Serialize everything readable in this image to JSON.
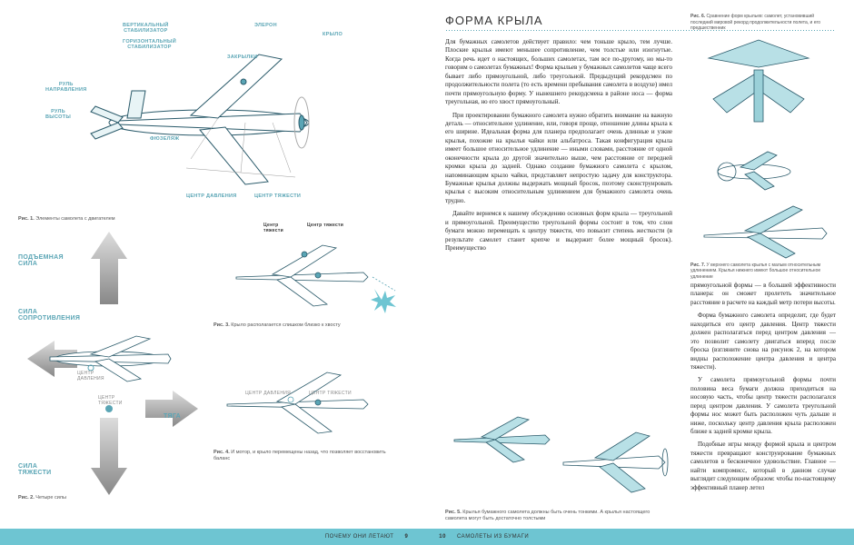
{
  "colors": {
    "teal": "#6ec5d2",
    "tealDark": "#5aa5b5",
    "footerBg": "#6ec5d2"
  },
  "leftPage": {
    "fig1": {
      "labels": {
        "vertStab": "ВЕРТИКАЛЬНЫЙ\nСТАБИЛИЗАТОР",
        "horzStab": "ГОРИЗОНТАЛЬНЫЙ\nСТАБИЛИЗАТОР",
        "aileron": "ЭЛЕРОН",
        "wing": "КРЫЛО",
        "flaps": "ЗАКРЫЛКИ",
        "rudderDir": "РУЛЬ\nНАПРАВЛЕНИЯ",
        "rudderAlt": "РУЛЬ\nВЫСОТЫ",
        "fuselage": "ФЮЗЕЛЯЖ",
        "pressureCenter": "ЦЕНТР ДАВЛЕНИЯ",
        "gravityCenter": "ЦЕНТР ТЯЖЕСТИ"
      },
      "caption": "Рис. 1. Элементы самолета с двигателем"
    },
    "fig2": {
      "forces": {
        "lift": "ПОДЪЕМНАЯ\nСИЛА",
        "drag": "СИЛА\nСОПРОТИВЛЕНИЯ",
        "thrust": "ТЯГА",
        "gravity": "СИЛА\nТЯЖЕСТИ"
      },
      "small": {
        "centerG": "Центр\nтяжести",
        "centerGCaps": "ЦЕНТР\nТЯЖЕСТИ",
        "centerP": "ЦЕНТР\nДАВЛЕНИЯ",
        "centerGravCaps2": "Центр тяжести",
        "centerPress2": "ЦЕНТР ДАВЛЕНИЯ",
        "centerGrav2": "ЦЕНТР ТЯЖЕСТИ"
      },
      "caption2": "Рис. 2. Четыре силы",
      "caption3": "Рис. 3. Крыло располагается слишком близко к хвосту",
      "caption4": "Рис. 4. И мотор, и крыло перемещены назад, что позволяет восстановить баланс"
    }
  },
  "rightPage": {
    "title": "ФОРМА КРЫЛА",
    "para1": "Для бумажных самолетов действует правило: чем тоньше крыло, тем лучше. Плоские крылья имеют меньшее сопротивление, чем толстые или изогнутые. Когда речь идет о настоящих, больших самолетах, там все по-другому, но мы-то говорим о самолетах бумажных! Форма крыльев у бумажных самолетов чаще всего бывает либо прямоугольной, либо треугольной. Предыдущий рекордсмен по продолжительности полета (то есть времени пребывания самолета в воздухе) имел почти прямоугольную форму. У нынешнего рекордсмена в районе носа — форма треугольная, но его хвост прямоугольный.",
    "para2": "При проектировании бумажного самолета нужно обратить внимание на важную деталь — относительное удлинение, или, говоря проще, отношение длины крыла к его ширине. Идеальная форма для планера предполагает очень длинные и узкие крылья, похожие на крылья чайки или альбатроса. Такая конфигурация крыла имеет большое относительное удлинение — иными словами, расстояние от одной оконечности крыла до другой значительно выше, чем расстояние от передней кромки крыла до задней. Однако создание бумажного самолета с крылом, напоминающим крыло чайки, представляет непростую задачу для конструктора. Бумажные крылья должны выдержать мощный бросок, поэтому сконструировать крылья с высоким относительным удлинением для бумажного самолета очень трудно.",
    "para3": "Давайте вернемся к нашему обсуждению основных форм крыла — треугольной и прямоугольной. Преимущество треугольной формы состоит в том, что слои бумаги можно перемещать к центру тяжести, что повысит степень жесткости (в результате самолет станет крепче и выдержит более мощный бросок). Преимущество",
    "paraR1": "прямоугольной формы — в большей эффективности планера: он сможет пролететь значительное расстояние в расчете на каждый метр потери высоты.",
    "paraR2": "Форма бумажного самолета определит, где будет находиться его центр давления. Центр тяжести должен располагаться перед центром давления — это позволит самолету двигаться вперед после броска (взгляните снова на рисунок 2, на котором видны расположение центра давления и центра тяжести).",
    "paraR3": "У самолета прямоугольной формы почти половина веса бумаги должна приходиться на носовую часть, чтобы центр тяжести располагался перед центром давления. У самолета треугольной формы нос может быть расположен чуть дальше и ниже, поскольку центр давления крыла расположен ближе к задней кромке крыла.",
    "paraR4": "Подобные игры между формой крыла и центром тяжести превращают конструирование бумажных самолетов в бесконечное удовольствие. Главное — найти компромисс, который в данном случае выглядит следующим образом: чтобы по-настоящему эффективный планер летел",
    "fig5caption": "Рис. 5. Крылья бумажного самолета должны быть очень тонкими. А крылья настоящего самолета могут быть достаточно толстыми",
    "fig6caption": "Рис. 6. Сравнение форм крыльев: самолет, установивший последний мировой рекорд продолжительности полета, и его предшественник",
    "fig7caption": "Рис. 7. У верхнего самолета крылья с малым относительным удлинением. Крылья нижнего имеют большое относительное удлинение"
  },
  "footer": {
    "leftText": "ПОЧЕМУ ОНИ ЛЕТАЮТ",
    "leftNum": "9",
    "rightNum": "10",
    "rightText": "САМОЛЕТЫ ИЗ БУМАГИ"
  }
}
